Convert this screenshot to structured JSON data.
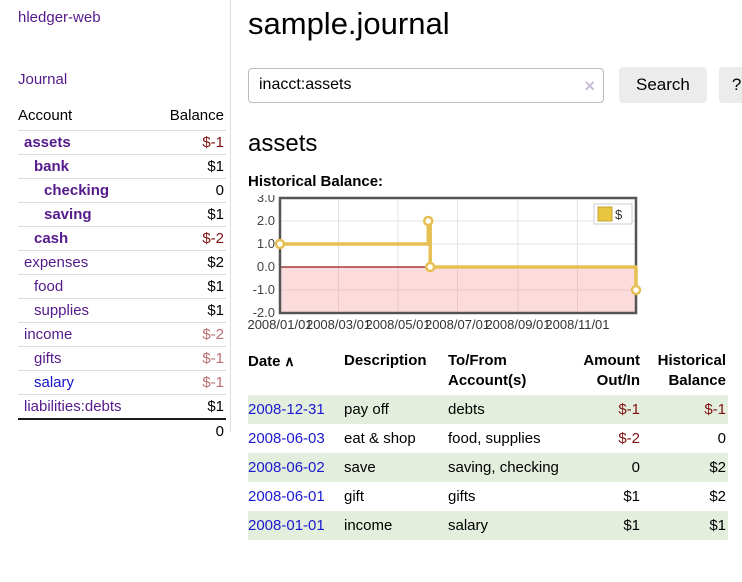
{
  "app": {
    "brand": "hledger-web"
  },
  "sidebar": {
    "journal_link": "Journal",
    "table_headers": {
      "account": "Account",
      "balance": "Balance"
    },
    "accounts": [
      {
        "name": "assets",
        "level": 1,
        "emph": true,
        "link_color": "purple",
        "balance": "$-1",
        "balance_style": "neg-strong"
      },
      {
        "name": "bank",
        "level": 2,
        "emph": true,
        "link_color": "purple",
        "balance": "$1",
        "balance_style": "pos-strong"
      },
      {
        "name": "checking",
        "level": 3,
        "emph": true,
        "link_color": "purple",
        "balance": "0",
        "balance_style": "pos-strong"
      },
      {
        "name": "saving",
        "level": 3,
        "emph": true,
        "link_color": "purple",
        "balance": "$1",
        "balance_style": "pos-strong"
      },
      {
        "name": "cash",
        "level": 2,
        "emph": true,
        "link_color": "purple",
        "balance": "$-2",
        "balance_style": "neg-strong"
      },
      {
        "name": "expenses",
        "level": 1,
        "emph": false,
        "link_color": "purple",
        "balance": "$2",
        "balance_style": "pos"
      },
      {
        "name": "food",
        "level": 2,
        "emph": false,
        "link_color": "purple",
        "balance": "$1",
        "balance_style": "pos"
      },
      {
        "name": "supplies",
        "level": 2,
        "emph": false,
        "link_color": "purple",
        "balance": "$1",
        "balance_style": "pos"
      },
      {
        "name": "income",
        "level": 1,
        "emph": false,
        "link_color": "purple",
        "balance": "$-2",
        "balance_style": "neg-soft"
      },
      {
        "name": "gifts",
        "level": 2,
        "emph": false,
        "link_color": "purple",
        "balance": "$-1",
        "balance_style": "neg-soft"
      },
      {
        "name": "salary",
        "level": 2,
        "emph": false,
        "link_color": "blue",
        "balance": "$-1",
        "balance_style": "neg-soft"
      },
      {
        "name": "liabilities:debts",
        "level": 1,
        "emph": false,
        "link_color": "purple",
        "balance": "$1",
        "balance_style": "pos"
      }
    ],
    "total": "0"
  },
  "main": {
    "title": "sample.journal",
    "search": {
      "value": "inacct:assets",
      "clear_icon": "×",
      "search_button": "Search",
      "help_button": "?"
    },
    "account_heading": "assets",
    "chart_label": "Historical Balance:"
  },
  "chart_data": {
    "type": "line",
    "step": true,
    "title": "Historical Balance",
    "series": [
      {
        "name": "$",
        "color": "#e6c053",
        "points": [
          [
            "2008-01-01",
            1
          ],
          [
            "2008-06-01",
            2
          ],
          [
            "2008-06-03",
            0
          ],
          [
            "2008-12-31",
            -1
          ]
        ]
      }
    ],
    "x_ticks": [
      "2008/01/01",
      "2008/03/01",
      "2008/05/01",
      "2008/07/01",
      "2008/09/01",
      "2008/11/01"
    ],
    "x_tick_days": [
      0,
      60,
      121,
      182,
      244,
      305
    ],
    "x_range_days": 365,
    "y_ticks": [
      3.0,
      2.0,
      1.0,
      0.0,
      -1.0,
      -2.0
    ],
    "ylim": [
      -2,
      3
    ],
    "grid": true,
    "negative_fill": "#fbdbdb",
    "negative_grid": "#eec6c6",
    "zero_line_color": "#8f1a1a",
    "legend": {
      "label": "$",
      "position": "top-right"
    }
  },
  "register": {
    "headers": [
      {
        "line1": "Date",
        "line2": "",
        "sort_icon": "∧",
        "align": "left"
      },
      {
        "line1": "Description",
        "line2": "",
        "align": "left"
      },
      {
        "line1": "To/From",
        "line2": "Account(s)",
        "align": "left"
      },
      {
        "line1": "Amount",
        "line2": "Out/In",
        "align": "right"
      },
      {
        "line1": "Historical",
        "line2": "Balance",
        "align": "right"
      }
    ],
    "rows": [
      {
        "date": "2008-12-31",
        "description": "pay off",
        "accounts": "debts",
        "amount": "$-1",
        "amount_negative": true,
        "balance": "$-1",
        "balance_negative": true
      },
      {
        "date": "2008-06-03",
        "description": "eat & shop",
        "accounts": "food, supplies",
        "amount": "$-2",
        "amount_negative": true,
        "balance": "0",
        "balance_negative": false
      },
      {
        "date": "2008-06-02",
        "description": "save",
        "accounts": "saving, checking",
        "amount": "0",
        "amount_negative": false,
        "balance": "$2",
        "balance_negative": false
      },
      {
        "date": "2008-06-01",
        "description": "gift",
        "accounts": "gifts",
        "amount": "$1",
        "amount_negative": false,
        "balance": "$2",
        "balance_negative": false
      },
      {
        "date": "2008-01-01",
        "description": "income",
        "accounts": "salary",
        "amount": "$1",
        "amount_negative": false,
        "balance": "$1",
        "balance_negative": false
      }
    ]
  },
  "colors": {
    "link_purple": "#551a8b",
    "link_blue": "#1414cc",
    "negative_strong": "#7d1010",
    "negative_soft": "#bb6f73",
    "row_green": "#e3eedd",
    "chart_gold": "#e6c053"
  }
}
